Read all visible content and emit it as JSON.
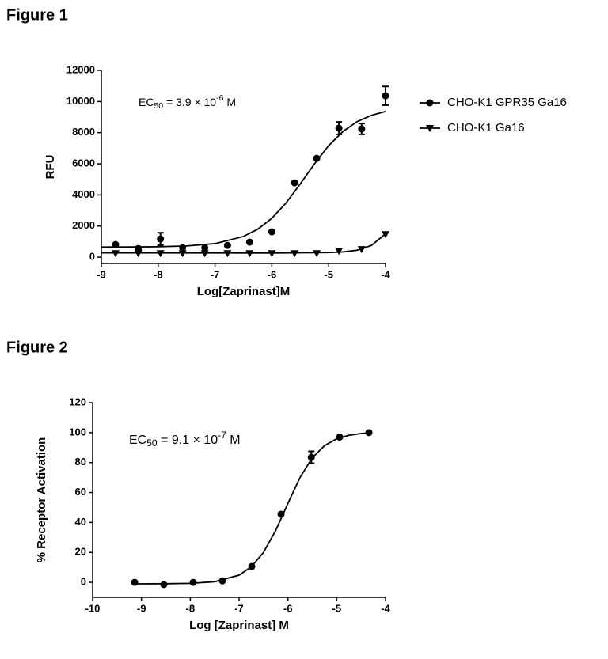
{
  "chart_data": [
    {
      "type": "scatter",
      "title": "Figure 1",
      "x_label": "Log[Zaprinast]M",
      "y_label": "RFU",
      "annotation": {
        "prefix": "EC",
        "subscript": "50",
        "middle": " = 3.9 × 10",
        "superscript": "-6",
        "suffix": " M"
      },
      "xlim": [
        -9,
        -4
      ],
      "xticks": [
        -9,
        -8,
        -7,
        -6,
        -5,
        -4
      ],
      "ylim": [
        -400,
        12000
      ],
      "yticks": [
        0,
        2000,
        4000,
        6000,
        8000,
        10000,
        12000
      ],
      "legend": "right",
      "series": [
        {
          "name": "CHO-K1 GPR35 Ga16",
          "color": "#000000",
          "marker": "circle",
          "x": [
            -8.75,
            -8.35,
            -7.96,
            -7.57,
            -7.18,
            -6.78,
            -6.39,
            -6,
            -5.6,
            -5.21,
            -4.82,
            -4.42,
            -4
          ],
          "values": [
            813,
            560,
            1170,
            610,
            610,
            760,
            970,
            1630,
            4780,
            6350,
            8290,
            8240,
            10370
          ],
          "errors": [
            null,
            null,
            400,
            null,
            null,
            null,
            null,
            null,
            null,
            null,
            400,
            350,
            600
          ],
          "fit": {
            "x": [
              -9,
              -8.5,
              -8,
              -7.5,
              -7,
              -6.5,
              -6.25,
              -6,
              -5.75,
              -5.5,
              -5.25,
              -5,
              -4.75,
              -4.5,
              -4.25,
              -4
            ],
            "values": [
              652,
              657,
              673,
              723,
              873,
              1330,
              1793,
              2501,
              3487,
              4708,
              5999,
              7166,
              8074,
              8709,
              9114,
              9361
            ]
          }
        },
        {
          "name": "CHO-K1 Ga16",
          "color": "#000000",
          "marker": "triangle-down",
          "x": [
            -8.75,
            -8.35,
            -7.96,
            -7.57,
            -7.18,
            -6.78,
            -6.39,
            -6,
            -5.6,
            -5.21,
            -4.82,
            -4.42,
            -4
          ],
          "values": [
            250,
            250,
            250,
            250,
            250,
            250,
            250,
            250,
            250,
            250,
            400,
            510,
            1470
          ],
          "errors": [
            null,
            null,
            null,
            null,
            null,
            null,
            null,
            null,
            null,
            null,
            null,
            null,
            null
          ],
          "fit": {
            "x": [
              -9,
              -7,
              -6,
              -5,
              -4.75,
              -4.5,
              -4.25,
              -4
            ],
            "values": [
              280,
              275,
              270,
              300,
              340,
              450,
              750,
              1500
            ]
          }
        }
      ]
    },
    {
      "type": "scatter",
      "title": "Figure 2",
      "x_label": "Log [Zaprinast] M",
      "y_label": "% Receptor Activation",
      "annotation": {
        "prefix": "EC",
        "subscript": "50",
        "middle": " = 9.1 × 10",
        "superscript": "-7",
        "suffix": " M"
      },
      "xlim": [
        -10,
        -4
      ],
      "xticks": [
        -10,
        -9,
        -8,
        -7,
        -6,
        -5,
        -4
      ],
      "ylim": [
        -10,
        120
      ],
      "yticks": [
        0,
        20,
        40,
        60,
        80,
        100,
        120
      ],
      "series": [
        {
          "color": "#000000",
          "marker": "circle",
          "x": [
            -9.14,
            -8.54,
            -7.94,
            -7.34,
            -6.74,
            -6.14,
            -5.52,
            -4.94,
            -4.34
          ],
          "values": [
            0,
            -1.5,
            0,
            1,
            10.6,
            45.5,
            83.5,
            97,
            100
          ],
          "errors": [
            null,
            null,
            null,
            null,
            null,
            null,
            4,
            null,
            null
          ],
          "fit": {
            "x": [
              -9.14,
              -8.5,
              -8,
              -7.5,
              -7,
              -6.75,
              -6.5,
              -6.25,
              -6,
              -5.75,
              -5.5,
              -5.25,
              -5,
              -4.75,
              -4.5,
              -4.34
            ],
            "values": [
              -1,
              -0.92,
              -0.67,
              0.41,
              4.77,
              10.35,
              19.97,
              34.6,
              52.7,
              70.1,
              83.2,
              91.3,
              95.9,
              98.2,
              99.4,
              99.8
            ]
          }
        }
      ]
    }
  ]
}
